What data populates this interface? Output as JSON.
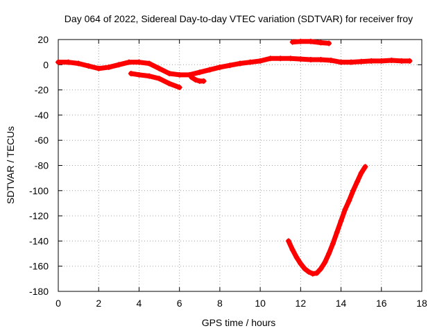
{
  "chart_data": {
    "type": "scatter",
    "title": "Day 064 of 2022, Sidereal Day-to-day VTEC variation (SDTVAR) for receiver froy",
    "xlabel": "GPS time / hours",
    "ylabel": "SDTVAR / TECUs",
    "xlim": [
      0,
      18
    ],
    "ylim": [
      -180,
      20
    ],
    "xticks": [
      0,
      2,
      4,
      6,
      8,
      10,
      12,
      14,
      16,
      18
    ],
    "yticks": [
      20,
      0,
      -20,
      -40,
      -60,
      -80,
      -100,
      -120,
      -140,
      -160,
      -180
    ],
    "grid": true,
    "marker": "+",
    "color": "#ff0000",
    "series": [
      {
        "name": "arc-main",
        "x": [
          0,
          0.5,
          1.0,
          1.5,
          2.0,
          2.5,
          3.0,
          3.5,
          4.0,
          4.5,
          5.0,
          5.5,
          6.0,
          6.5,
          7.0,
          7.5,
          8.0,
          8.5,
          9.0,
          9.5,
          10.0,
          10.5,
          11.0,
          11.5,
          12.0,
          12.5,
          13.0,
          13.5,
          14.0,
          14.5,
          15.0,
          15.5,
          16.0,
          16.5,
          17.0,
          17.4
        ],
        "y": [
          2,
          2,
          1,
          -1,
          -3,
          -2,
          0,
          2,
          2,
          1,
          -3,
          -7,
          -8,
          -8,
          -6,
          -4,
          -2,
          -0.5,
          1,
          2,
          3,
          5,
          5,
          5,
          4.5,
          4,
          4,
          3.5,
          2,
          2,
          2.5,
          3,
          3,
          3.5,
          3,
          3
        ]
      },
      {
        "name": "arc-low",
        "x": [
          3.6,
          4.0,
          4.5,
          5.0,
          5.5,
          6.0
        ],
        "y": [
          -7,
          -8,
          -9,
          -11,
          -15,
          -18
        ]
      },
      {
        "name": "arc-short",
        "x": [
          6.6,
          6.8,
          7.0,
          7.2
        ],
        "y": [
          -10,
          -12,
          -13,
          -13
        ]
      },
      {
        "name": "arc-high",
        "x": [
          11.6,
          12.0,
          12.5,
          13.0,
          13.4
        ],
        "y": [
          18,
          18.5,
          18.5,
          17.5,
          17
        ]
      },
      {
        "name": "arc-dip",
        "x": [
          11.4,
          11.6,
          11.8,
          12.0,
          12.2,
          12.4,
          12.6,
          12.8,
          13.0,
          13.2,
          13.4,
          13.6,
          13.8,
          14.0,
          14.2,
          14.4,
          14.6,
          14.8,
          15.0,
          15.2
        ],
        "y": [
          -140,
          -147,
          -153,
          -158,
          -162,
          -164.5,
          -166,
          -165.5,
          -162,
          -157,
          -150,
          -142,
          -133,
          -124,
          -115,
          -108,
          -100,
          -93,
          -86,
          -81
        ]
      }
    ]
  }
}
